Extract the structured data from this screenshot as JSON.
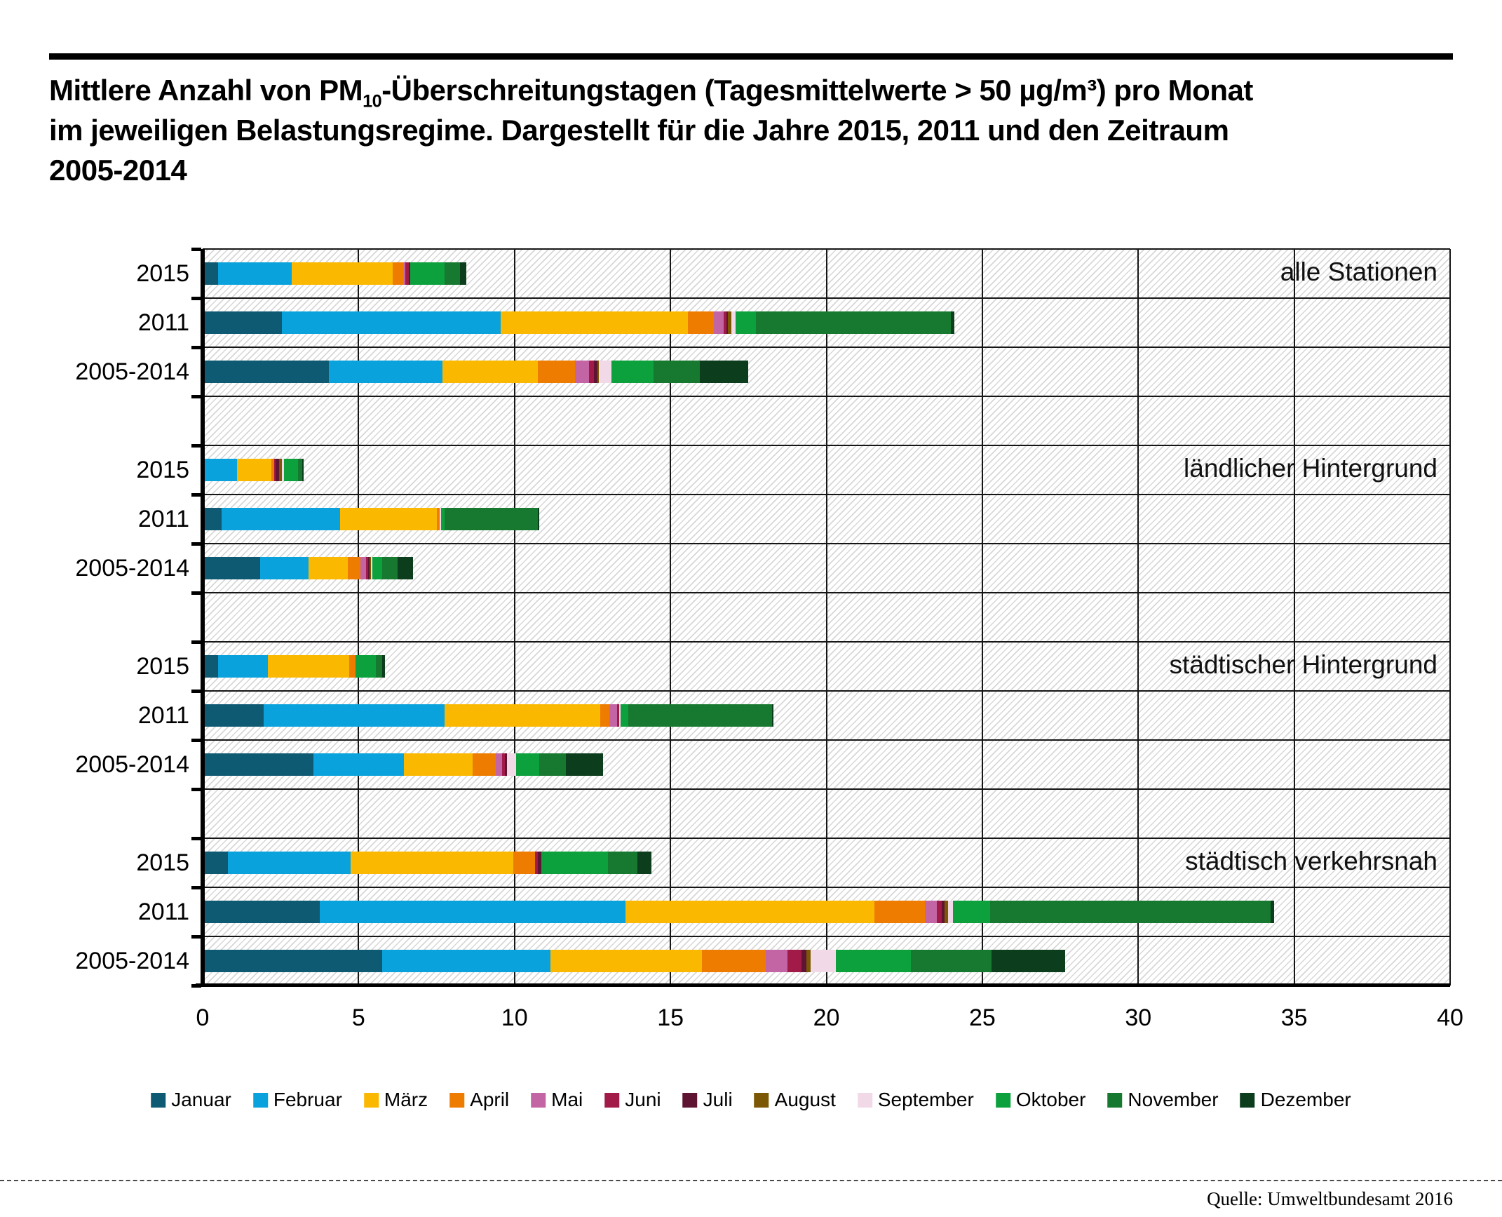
{
  "title": {
    "line1_pre": "Mittlere Anzahl von PM",
    "line1_sub": "10",
    "line1_post": "-Überschreitungstagen (Tagesmittelwerte > 50 µg/m³) pro Monat",
    "line2": "im jeweiligen Belastungsregime. Dargestellt für die Jahre 2015, 2011 und den Zeitraum",
    "line3": "2005-2014"
  },
  "source": "Quelle: Umweltbundesamt 2016",
  "chart_data": {
    "type": "bar",
    "orientation": "horizontal",
    "stacked": true,
    "xlim": [
      0,
      40
    ],
    "xticks": [
      0,
      5,
      10,
      15,
      20,
      25,
      30,
      35,
      40
    ],
    "grid": "vertical-and-band-lines",
    "plot_background": "diagonal-hatch",
    "legend_position": "bottom",
    "months": [
      "Januar",
      "Februar",
      "März",
      "April",
      "Mai",
      "Juni",
      "Juli",
      "August",
      "September",
      "Oktober",
      "November",
      "Dezember"
    ],
    "month_colors": [
      "#0e5a73",
      "#0aa2dc",
      "#fbb800",
      "#ee7c00",
      "#c364a4",
      "#a21a47",
      "#5e1533",
      "#7c5804",
      "#f2d9e8",
      "#0ca13c",
      "#17782f",
      "#0c3d1d"
    ],
    "groups": [
      {
        "label": "alle Stationen",
        "rows": [
          {
            "label": "2015",
            "values": [
              0.5,
              2.35,
              3.25,
              0.35,
              0.05,
              0.1,
              0.05,
              0,
              0,
              1.1,
              0.5,
              0.2
            ]
          },
          {
            "label": "2011",
            "values": [
              2.55,
              7.0,
              6.0,
              0.85,
              0.3,
              0.1,
              0.05,
              0.1,
              0.15,
              0.65,
              6.25,
              0.1
            ]
          },
          {
            "label": "2005-2014",
            "values": [
              4.05,
              3.65,
              3.05,
              1.2,
              0.45,
              0.15,
              0.1,
              0.05,
              0.4,
              1.35,
              1.5,
              1.55
            ]
          }
        ]
      },
      {
        "label": "ländlicher Hintergrund",
        "rows": [
          {
            "label": "2015",
            "values": [
              0.05,
              1.05,
              1.1,
              0.1,
              0,
              0.05,
              0.1,
              0.1,
              0.05,
              0.45,
              0.15,
              0.05
            ]
          },
          {
            "label": "2011",
            "values": [
              0.6,
              3.8,
              3.1,
              0.1,
              0,
              0,
              0,
              0,
              0.05,
              0.1,
              3.0,
              0.05
            ]
          },
          {
            "label": "2005-2014",
            "values": [
              1.85,
              1.55,
              1.25,
              0.4,
              0.2,
              0.05,
              0.05,
              0.05,
              0.05,
              0.3,
              0.5,
              0.5
            ]
          }
        ]
      },
      {
        "label": "städtischer Hintergrund",
        "rows": [
          {
            "label": "2015",
            "values": [
              0.5,
              1.6,
              2.6,
              0.2,
              0,
              0,
              0,
              0,
              0,
              0.65,
              0.2,
              0.1
            ]
          },
          {
            "label": "2011",
            "values": [
              1.95,
              5.8,
              5.0,
              0.3,
              0.25,
              0.05,
              0,
              0,
              0.05,
              0.25,
              4.6,
              0.05
            ]
          },
          {
            "label": "2005-2014",
            "values": [
              3.55,
              2.9,
              2.2,
              0.75,
              0.2,
              0.1,
              0.05,
              0,
              0.3,
              0.75,
              0.85,
              1.2
            ]
          }
        ]
      },
      {
        "label": "städtisch verkehrsnah",
        "rows": [
          {
            "label": "2015",
            "values": [
              0.8,
              3.95,
              5.2,
              0.7,
              0,
              0.1,
              0.1,
              0,
              0,
              2.15,
              0.95,
              0.45
            ]
          },
          {
            "label": "2011",
            "values": [
              3.75,
              9.8,
              8.0,
              1.6,
              0.4,
              0.15,
              0.1,
              0.1,
              0.15,
              1.2,
              9.0,
              0.1
            ]
          },
          {
            "label": "2005-2014",
            "values": [
              5.75,
              5.4,
              4.85,
              2.05,
              0.7,
              0.45,
              0.15,
              0.15,
              0.8,
              2.4,
              2.6,
              2.35
            ]
          }
        ]
      }
    ]
  }
}
